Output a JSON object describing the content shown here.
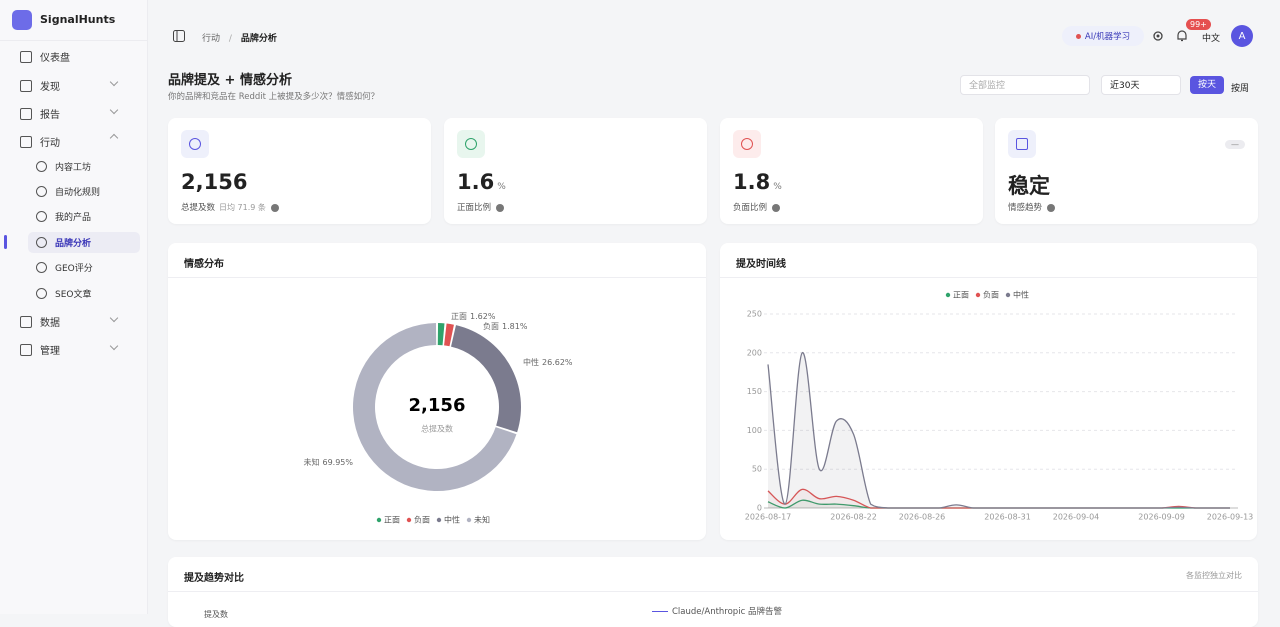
{
  "sidebar": {
    "brand": "SignalHunts",
    "nav": [
      {
        "label": "仪表盘"
      },
      {
        "label": "发现"
      },
      {
        "label": "报告"
      },
      {
        "label": "行动",
        "children": [
          "内容工坊",
          "自动化规则",
          "我的产品",
          "品牌分析",
          "GEO评分",
          "SEO文章"
        ]
      },
      {
        "label": "数据"
      },
      {
        "label": "管理"
      }
    ]
  },
  "topbar": {
    "breadcrumb": [
      "行动",
      "品牌分析"
    ],
    "separator": "/",
    "chip": "AI/机器学习",
    "badge": "99+",
    "language": "中文",
    "avatar": "A"
  },
  "header": {
    "title": "品牌提及 + 情感分析",
    "subtitle": "你的品牌和竞品在 Reddit 上被提及多少次？情感如何？"
  },
  "filters": {
    "monitor": "全部监控",
    "range": "近30天",
    "granularity": [
      "按天",
      "按周"
    ]
  },
  "stats": [
    {
      "value": "2,156",
      "label": "总提及数",
      "extra": "日均 71.9 条"
    },
    {
      "value": "1.6",
      "unit": "%",
      "label": "正面比例"
    },
    {
      "value": "1.8",
      "unit": "%",
      "label": "负面比例"
    },
    {
      "value": "稳定",
      "label": "情感趋势",
      "badge": "—"
    }
  ],
  "chart_data": [
    {
      "type": "pie",
      "title": "情感分布",
      "categories": [
        "正面",
        "负面",
        "中性",
        "未知"
      ],
      "values": [
        1.62,
        1.81,
        26.62,
        69.95
      ],
      "value_labels": [
        "1.62%",
        "1.81%",
        "26.62%",
        "69.95%"
      ],
      "colors": [
        "#2fa36b",
        "#e05252",
        "#7b7b8e",
        "#b1b3c2"
      ],
      "center_value": "2,156",
      "center_label": "总提及数",
      "legend": "bottom"
    },
    {
      "type": "line",
      "title": "提及时间线",
      "categories": [
        "2026-08-17",
        null,
        null,
        null,
        null,
        "2026-08-22",
        null,
        null,
        null,
        "2026-08-26",
        null,
        null,
        null,
        null,
        "2026-08-31",
        null,
        null,
        null,
        "2026-09-04",
        null,
        null,
        null,
        null,
        "2026-09-09",
        null,
        null,
        null,
        "2026-09-13"
      ],
      "series": [
        {
          "name": "正面",
          "color": "#2fa36b",
          "values": [
            8,
            0,
            10,
            5,
            5,
            3,
            0,
            0,
            0,
            0,
            0,
            0,
            0,
            0,
            0,
            0,
            0,
            0,
            0,
            0,
            0,
            0,
            0,
            0,
            0,
            0,
            0,
            0
          ]
        },
        {
          "name": "负面",
          "color": "#e05252",
          "values": [
            22,
            5,
            24,
            12,
            15,
            10,
            0,
            0,
            0,
            0,
            0,
            0,
            0,
            0,
            0,
            0,
            0,
            0,
            0,
            0,
            0,
            0,
            0,
            0,
            2,
            0,
            0,
            0
          ]
        },
        {
          "name": "中性",
          "color": "#7b7b8e",
          "values": [
            185,
            5,
            200,
            50,
            112,
            95,
            5,
            0,
            0,
            0,
            0,
            4,
            0,
            0,
            0,
            0,
            0,
            0,
            0,
            0,
            0,
            0,
            0,
            0,
            1,
            0,
            0,
            0
          ]
        }
      ],
      "ylim": [
        0,
        250
      ],
      "yticks": [
        0,
        50,
        100,
        150,
        200,
        250
      ],
      "grid": true,
      "legend": "top"
    }
  ],
  "trend": {
    "title": "提及趋势对比",
    "note": "各监控独立对比",
    "y_label": "提及数",
    "legend": [
      "Claude/Anthropic 品牌告警"
    ]
  }
}
